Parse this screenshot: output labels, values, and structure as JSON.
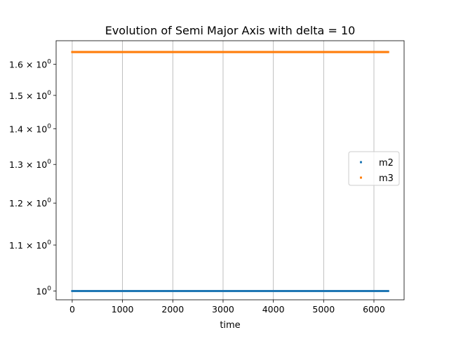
{
  "chart_data": {
    "type": "scatter",
    "title": "Evolution of Semi Major Axis with delta = 10",
    "xlabel": "time",
    "ylabel": "",
    "xscale": "linear",
    "yscale": "log",
    "xlim": [
      -320,
      6600
    ],
    "ylim": [
      0.982,
      1.68
    ],
    "grid": "vertical",
    "legend": "center-right",
    "x_ticks": [
      0,
      1000,
      2000,
      3000,
      4000,
      5000,
      6000
    ],
    "x_tick_labels": [
      "0",
      "1000",
      "2000",
      "3000",
      "4000",
      "5000",
      "6000"
    ],
    "y_ticks": [
      1.0,
      1.1,
      1.2,
      1.3,
      1.4,
      1.5,
      1.6
    ],
    "y_tick_labels": [
      {
        "base": "10",
        "exp": "0"
      },
      {
        "base": "1.1 × 10",
        "exp": "0"
      },
      {
        "base": "1.2 × 10",
        "exp": "0"
      },
      {
        "base": "1.3 × 10",
        "exp": "0"
      },
      {
        "base": "1.4 × 10",
        "exp": "0"
      },
      {
        "base": "1.5 × 10",
        "exp": "0"
      },
      {
        "base": "1.6 × 10",
        "exp": "0"
      }
    ],
    "series": [
      {
        "name": "m2",
        "color": "#1f77b4",
        "x_range": [
          0,
          6283
        ],
        "y": 1.0,
        "points": 300
      },
      {
        "name": "m3",
        "color": "#ff7f0e",
        "x_range": [
          0,
          6283
        ],
        "y": 1.6411,
        "points": 300
      }
    ]
  }
}
